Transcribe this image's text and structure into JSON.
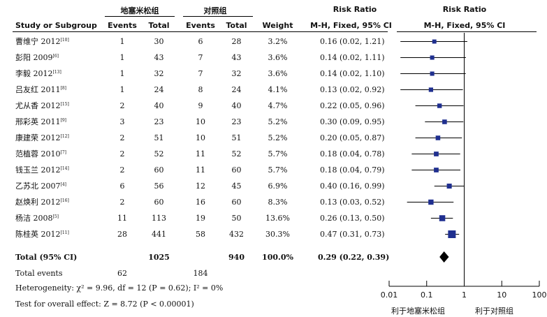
{
  "headers": {
    "group_exp": "地塞米松组",
    "group_ctl": "对照组",
    "study_col": "Study or Subgroup",
    "events1": "Events",
    "total1": "Total",
    "events2": "Events",
    "total2": "Total",
    "weight": "Weight",
    "rr_title": "Risk Ratio",
    "rr_method": "M-H, Fixed, 95% CI",
    "plot_title": "Risk Ratio",
    "plot_method": "M-H, Fixed, 95% CI"
  },
  "colors": {
    "box": "#1f2f8f",
    "line": "#000000"
  },
  "chart_data": {
    "type": "forest",
    "scale": "log",
    "xlim": [
      0.01,
      100
    ],
    "ticks": [
      0.01,
      0.1,
      1,
      10,
      100
    ],
    "tick_labels": [
      "0.01",
      "0.1",
      "1",
      "10",
      "100"
    ],
    "left_label": "利于地塞米松组",
    "right_label": "利于对照组",
    "studies": [
      {
        "name": "曹维宁 2012",
        "ref": "[10]",
        "e1": "1",
        "t1": "30",
        "e2": "6",
        "t2": "28",
        "weight": "3.2%",
        "rr_text": "0.16 (0.02, 1.21)",
        "rr": 0.16,
        "lo": 0.02,
        "hi": 1.21
      },
      {
        "name": "彭阳 2009",
        "ref": "[6]",
        "e1": "1",
        "t1": "43",
        "e2": "7",
        "t2": "43",
        "weight": "3.6%",
        "rr_text": "0.14 (0.02, 1.11)",
        "rr": 0.14,
        "lo": 0.02,
        "hi": 1.11
      },
      {
        "name": "李毅 2012",
        "ref": "[13]",
        "e1": "1",
        "t1": "32",
        "e2": "7",
        "t2": "32",
        "weight": "3.6%",
        "rr_text": "0.14 (0.02, 1.10)",
        "rr": 0.14,
        "lo": 0.02,
        "hi": 1.1
      },
      {
        "name": "吕友红 2011",
        "ref": "[8]",
        "e1": "1",
        "t1": "24",
        "e2": "8",
        "t2": "24",
        "weight": "4.1%",
        "rr_text": "0.13 (0.02, 0.92)",
        "rr": 0.13,
        "lo": 0.02,
        "hi": 0.92
      },
      {
        "name": "尤从香 2012",
        "ref": "[15]",
        "e1": "2",
        "t1": "40",
        "e2": "9",
        "t2": "40",
        "weight": "4.7%",
        "rr_text": "0.22 (0.05, 0.96)",
        "rr": 0.22,
        "lo": 0.05,
        "hi": 0.96
      },
      {
        "name": "邢彩英 2011",
        "ref": "[9]",
        "e1": "3",
        "t1": "23",
        "e2": "10",
        "t2": "23",
        "weight": "5.2%",
        "rr_text": "0.30 (0.09, 0.95)",
        "rr": 0.3,
        "lo": 0.09,
        "hi": 0.95
      },
      {
        "name": "康建荣 2012",
        "ref": "[12]",
        "e1": "2",
        "t1": "51",
        "e2": "10",
        "t2": "51",
        "weight": "5.2%",
        "rr_text": "0.20 (0.05, 0.87)",
        "rr": 0.2,
        "lo": 0.05,
        "hi": 0.87
      },
      {
        "name": "范植蓉 2010",
        "ref": "[7]",
        "e1": "2",
        "t1": "52",
        "e2": "11",
        "t2": "52",
        "weight": "5.7%",
        "rr_text": "0.18 (0.04, 0.78)",
        "rr": 0.18,
        "lo": 0.04,
        "hi": 0.78
      },
      {
        "name": "钱玉兰 2012",
        "ref": "[14]",
        "e1": "2",
        "t1": "60",
        "e2": "11",
        "t2": "60",
        "weight": "5.7%",
        "rr_text": "0.18 (0.04, 0.79)",
        "rr": 0.18,
        "lo": 0.04,
        "hi": 0.79
      },
      {
        "name": "乙苏北 2007",
        "ref": "[4]",
        "e1": "6",
        "t1": "56",
        "e2": "12",
        "t2": "45",
        "weight": "6.9%",
        "rr_text": "0.40 (0.16, 0.99)",
        "rr": 0.4,
        "lo": 0.16,
        "hi": 0.99
      },
      {
        "name": "赵焕利 2012",
        "ref": "[16]",
        "e1": "2",
        "t1": "60",
        "e2": "16",
        "t2": "60",
        "weight": "8.3%",
        "rr_text": "0.13 (0.03, 0.52)",
        "rr": 0.13,
        "lo": 0.03,
        "hi": 0.52
      },
      {
        "name": "杨洁 2008",
        "ref": "[5]",
        "e1": "11",
        "t1": "113",
        "e2": "19",
        "t2": "50",
        "weight": "13.6%",
        "rr_text": "0.26 (0.13, 0.50)",
        "rr": 0.26,
        "lo": 0.13,
        "hi": 0.5
      },
      {
        "name": "陈桂英 2012",
        "ref": "[11]",
        "e1": "28",
        "t1": "441",
        "e2": "58",
        "t2": "432",
        "weight": "30.3%",
        "rr_text": "0.47 (0.31, 0.73)",
        "rr": 0.47,
        "lo": 0.31,
        "hi": 0.73
      }
    ],
    "total": {
      "label": "Total (95% CI)",
      "t1": "1025",
      "t2": "940",
      "weight": "100.0%",
      "rr_text": "0.29 (0.22, 0.39)",
      "rr": 0.29,
      "lo": 0.22,
      "hi": 0.39
    },
    "total_events": {
      "label": "Total events",
      "e1": "62",
      "e2": "184"
    },
    "heterogeneity": "Heterogeneity: χ² = 9.96, df = 12 (P = 0.62); I² = 0%",
    "overall_effect": "Test for overall effect: Z = 8.72 (P < 0.00001)"
  }
}
